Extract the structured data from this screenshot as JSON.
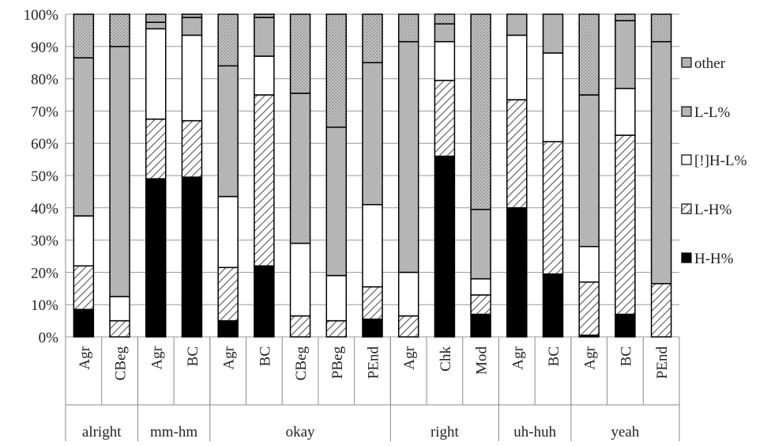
{
  "chart_data": {
    "type": "bar",
    "stacked": true,
    "percent": true,
    "ylim": [
      0,
      100
    ],
    "yticks": [
      0,
      10,
      20,
      30,
      40,
      50,
      60,
      70,
      80,
      90,
      100
    ],
    "ytick_labels": [
      "0%",
      "10%",
      "20%",
      "30%",
      "40%",
      "50%",
      "60%",
      "70%",
      "80%",
      "90%",
      "100%"
    ],
    "grid": true,
    "legend_position": "right",
    "categories": [
      "Agr",
      "CBeg",
      "Agr",
      "BC",
      "Agr",
      "BC",
      "CBeg",
      "PBeg",
      "PEnd",
      "Agr",
      "Chk",
      "Mod",
      "Agr",
      "BC",
      "Agr",
      "BC",
      "PEnd"
    ],
    "groups": [
      {
        "label": "alright",
        "size": 2
      },
      {
        "label": "mm-hm",
        "size": 2
      },
      {
        "label": "okay",
        "size": 5
      },
      {
        "label": "right",
        "size": 3
      },
      {
        "label": "uh-huh",
        "size": 2
      },
      {
        "label": "yeah",
        "size": 3
      }
    ],
    "series": [
      {
        "name": "H-H%",
        "values": [
          8.5,
          0,
          49,
          49.5,
          5,
          22,
          0,
          0,
          5.5,
          0,
          56,
          7,
          40,
          19.5,
          0.5,
          7,
          0
        ]
      },
      {
        "name": "L-H%",
        "values": [
          13.5,
          5,
          18.5,
          17.5,
          16.5,
          53,
          6.5,
          5,
          10,
          6.5,
          23.5,
          6,
          33.5,
          41,
          16.5,
          55.5,
          16.5
        ]
      },
      {
        "name": "[!]H-L%",
        "values": [
          15.5,
          7.5,
          28,
          26.5,
          22,
          12,
          22.5,
          14,
          25.5,
          13.5,
          12,
          5,
          20,
          27.5,
          11,
          14.5,
          0
        ]
      },
      {
        "name": "L-L%",
        "values": [
          49,
          77.5,
          2,
          5.5,
          40.5,
          12,
          46.5,
          46,
          44,
          71.5,
          5.5,
          21.5,
          6.5,
          12,
          47,
          21,
          75
        ]
      },
      {
        "name": "other",
        "values": [
          13.5,
          10,
          2.5,
          1,
          16,
          1,
          24.5,
          35,
          15,
          8.5,
          3,
          60.5,
          0,
          0,
          25,
          2,
          8.5
        ]
      }
    ],
    "legend": [
      "other",
      "L-L%",
      "[!]H-L%",
      "L-H%",
      "H-H%"
    ],
    "series_styles": {
      "H-H%": {
        "fill": "#000000",
        "pattern": "solid"
      },
      "L-H%": {
        "fill": "#ffffff",
        "pattern": "hatch"
      },
      "[!]H-L%": {
        "fill": "#ffffff",
        "pattern": "solid"
      },
      "L-L%": {
        "fill": "#b5b5b5",
        "pattern": "solid"
      },
      "other": {
        "fill": "#b9b9b9",
        "pattern": "dots"
      }
    }
  }
}
